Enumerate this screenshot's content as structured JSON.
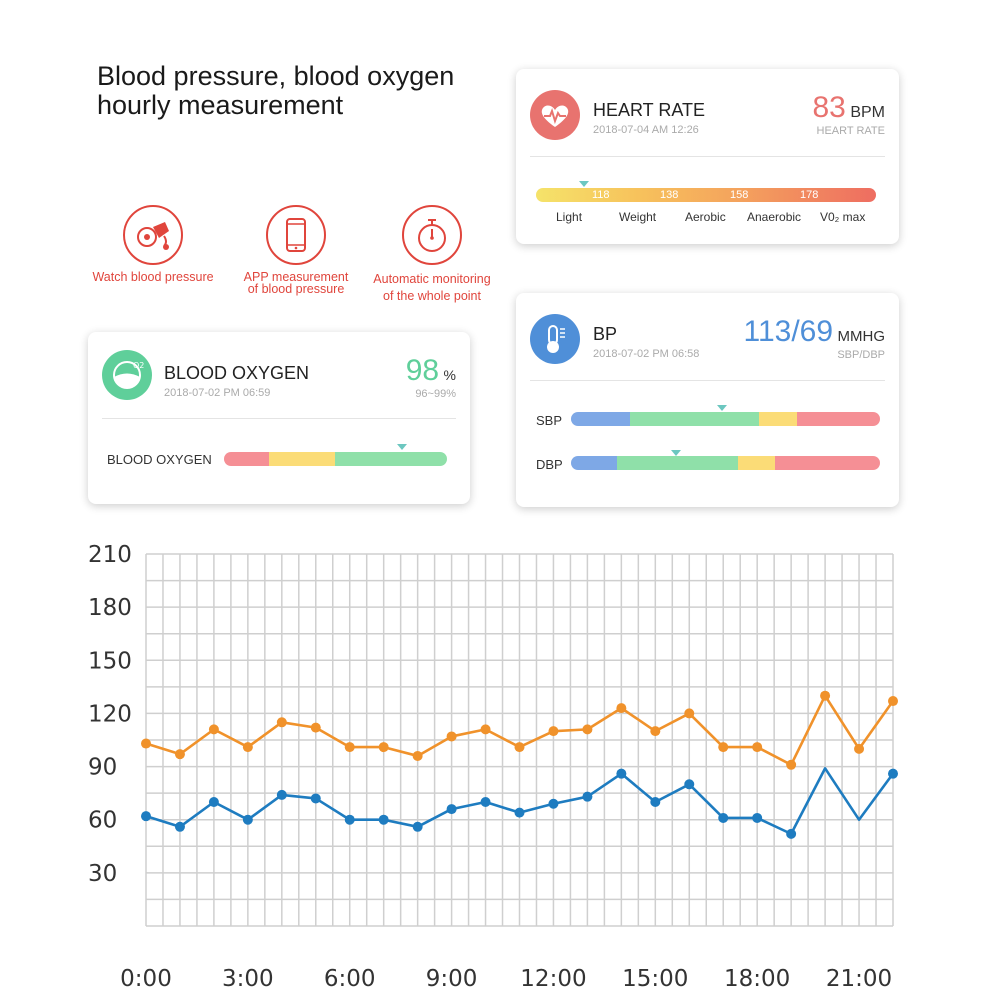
{
  "headline": {
    "line1": "Blood pressure, blood oxygen",
    "line2": "hourly measurement"
  },
  "features": [
    {
      "icon": "blood-pressure-cuff-icon",
      "line1": "Watch blood pressure",
      "line2": ""
    },
    {
      "icon": "phone-icon",
      "line1": "APP measurement",
      "line2": "of blood pressure"
    },
    {
      "icon": "stopwatch-icon",
      "line1": "Automatic monitoring",
      "line2": "of the whole point"
    }
  ],
  "heart_rate": {
    "icon": "heart-pulse-icon",
    "title": "HEART RATE",
    "date": "2018-07-04 AM 12:26",
    "value": "83",
    "unit": "BPM",
    "sub": "HEART RATE",
    "accent": "#e8736f",
    "marker_fraction": 0.14,
    "ticks": [
      "118",
      "138",
      "158",
      "178"
    ],
    "zones": [
      "Light",
      "Weight",
      "Aerobic",
      "Anaerobic",
      "V0₂ max"
    ]
  },
  "blood_oxygen": {
    "icon": "oxygen-icon",
    "title": "BLOOD OXYGEN",
    "date": "2018-07-02 PM 06:59",
    "value": "98",
    "unit": "%",
    "sub": "96~99%",
    "accent": "#5fcf9a",
    "bar_label": "BLOOD OXYGEN",
    "marker_fraction": 0.8
  },
  "bp": {
    "icon": "thermometer-icon",
    "title": "BP",
    "date": "2018-07-02 PM 06:58",
    "value": "113/69",
    "unit": "MMHG",
    "sub": "SBP/DBP",
    "accent": "#4f8fd8",
    "sbp_label": "SBP",
    "dbp_label": "DBP",
    "sbp_marker_fraction": 0.49,
    "dbp_marker_fraction": 0.34
  },
  "chart_data": {
    "type": "line",
    "x": [
      "0:00",
      "1:00",
      "2:00",
      "3:00",
      "4:00",
      "5:00",
      "6:00",
      "7:00",
      "8:00",
      "9:00",
      "10:00",
      "11:00",
      "12:00",
      "13:00",
      "14:00",
      "15:00",
      "16:00",
      "17:00",
      "18:00",
      "19:00",
      "20:00",
      "21:00",
      "22:00"
    ],
    "x_tick_labels": [
      "0:00",
      "3:00",
      "6:00",
      "9:00",
      "12:00",
      "15:00",
      "18:00",
      "21:00"
    ],
    "y_tick_labels": [
      "210",
      "180",
      "150",
      "120",
      "90",
      "60",
      "30"
    ],
    "ylim": [
      0,
      210
    ],
    "grid": true,
    "series": [
      {
        "color": "#f0922b",
        "values": [
          103,
          97,
          111,
          101,
          115,
          112,
          101,
          101,
          96,
          107,
          111,
          101,
          110,
          111,
          123,
          110,
          120,
          101,
          101,
          91,
          130,
          100,
          127
        ],
        "markers": [
          true,
          true,
          true,
          true,
          true,
          true,
          true,
          true,
          true,
          true,
          true,
          true,
          true,
          true,
          true,
          true,
          true,
          true,
          true,
          true,
          true,
          true,
          true
        ]
      },
      {
        "color": "#1e7cc0",
        "values": [
          62,
          56,
          70,
          60,
          74,
          72,
          60,
          60,
          56,
          66,
          70,
          64,
          69,
          73,
          86,
          70,
          80,
          61,
          61,
          52,
          89,
          60,
          86
        ],
        "markers": [
          true,
          true,
          true,
          true,
          true,
          true,
          true,
          true,
          true,
          true,
          true,
          true,
          true,
          true,
          true,
          true,
          true,
          true,
          true,
          true,
          false,
          false,
          true
        ]
      }
    ]
  }
}
